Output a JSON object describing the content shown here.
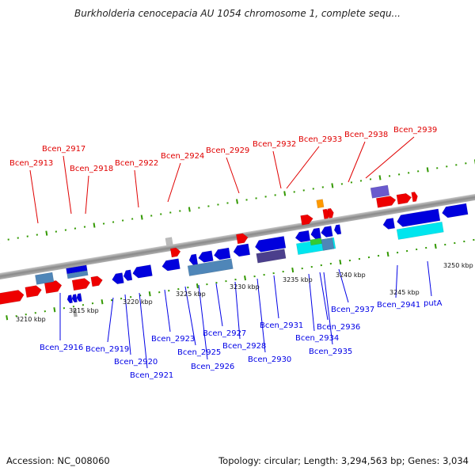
{
  "title": "Burkholderia cenocepacia AU 1054 chromosome 1, complete sequ...",
  "footer": {
    "accession": "Accession: NC_008060",
    "summary": "Topology: circular; Length: 3,294,563 bp; Genes: 3,034"
  },
  "scale_labels": [
    "3210 kbp",
    "3215 kbp",
    "3220 kbp",
    "3225 kbp",
    "3230 kbp",
    "3235 kbp",
    "3240 kbp",
    "3245 kbp",
    "3250 kbp"
  ],
  "genes_top": [
    "Bcen_2913",
    "Bcen_2917",
    "Bcen_2918",
    "Bcen_2922",
    "Bcen_2924",
    "Bcen_2929",
    "Bcen_2932",
    "Bcen_2933",
    "Bcen_2938",
    "Bcen_2939"
  ],
  "genes_bottom": [
    "Bcen_2916",
    "Bcen_2919",
    "Bcen_2920",
    "Bcen_2921",
    "Bcen_2923",
    "Bcen_2925",
    "Bcen_2926",
    "Bcen_2927",
    "Bcen_2928",
    "Bcen_2930",
    "Bcen_2931",
    "Bcen_2934",
    "Bcen_2936",
    "Bcen_2935",
    "Bcen_2937",
    "Bcen_2941",
    "putA"
  ],
  "colors": {
    "forward_gene": "#ee0000",
    "reverse_gene": "#0000dd",
    "steel_blue": "#4f86b8",
    "cyan": "#00e5ee",
    "purple": "#6a5acd",
    "magenta": "#ee1493",
    "orange": "#ff9900",
    "tick": "#339900",
    "backbone": "#999999"
  }
}
